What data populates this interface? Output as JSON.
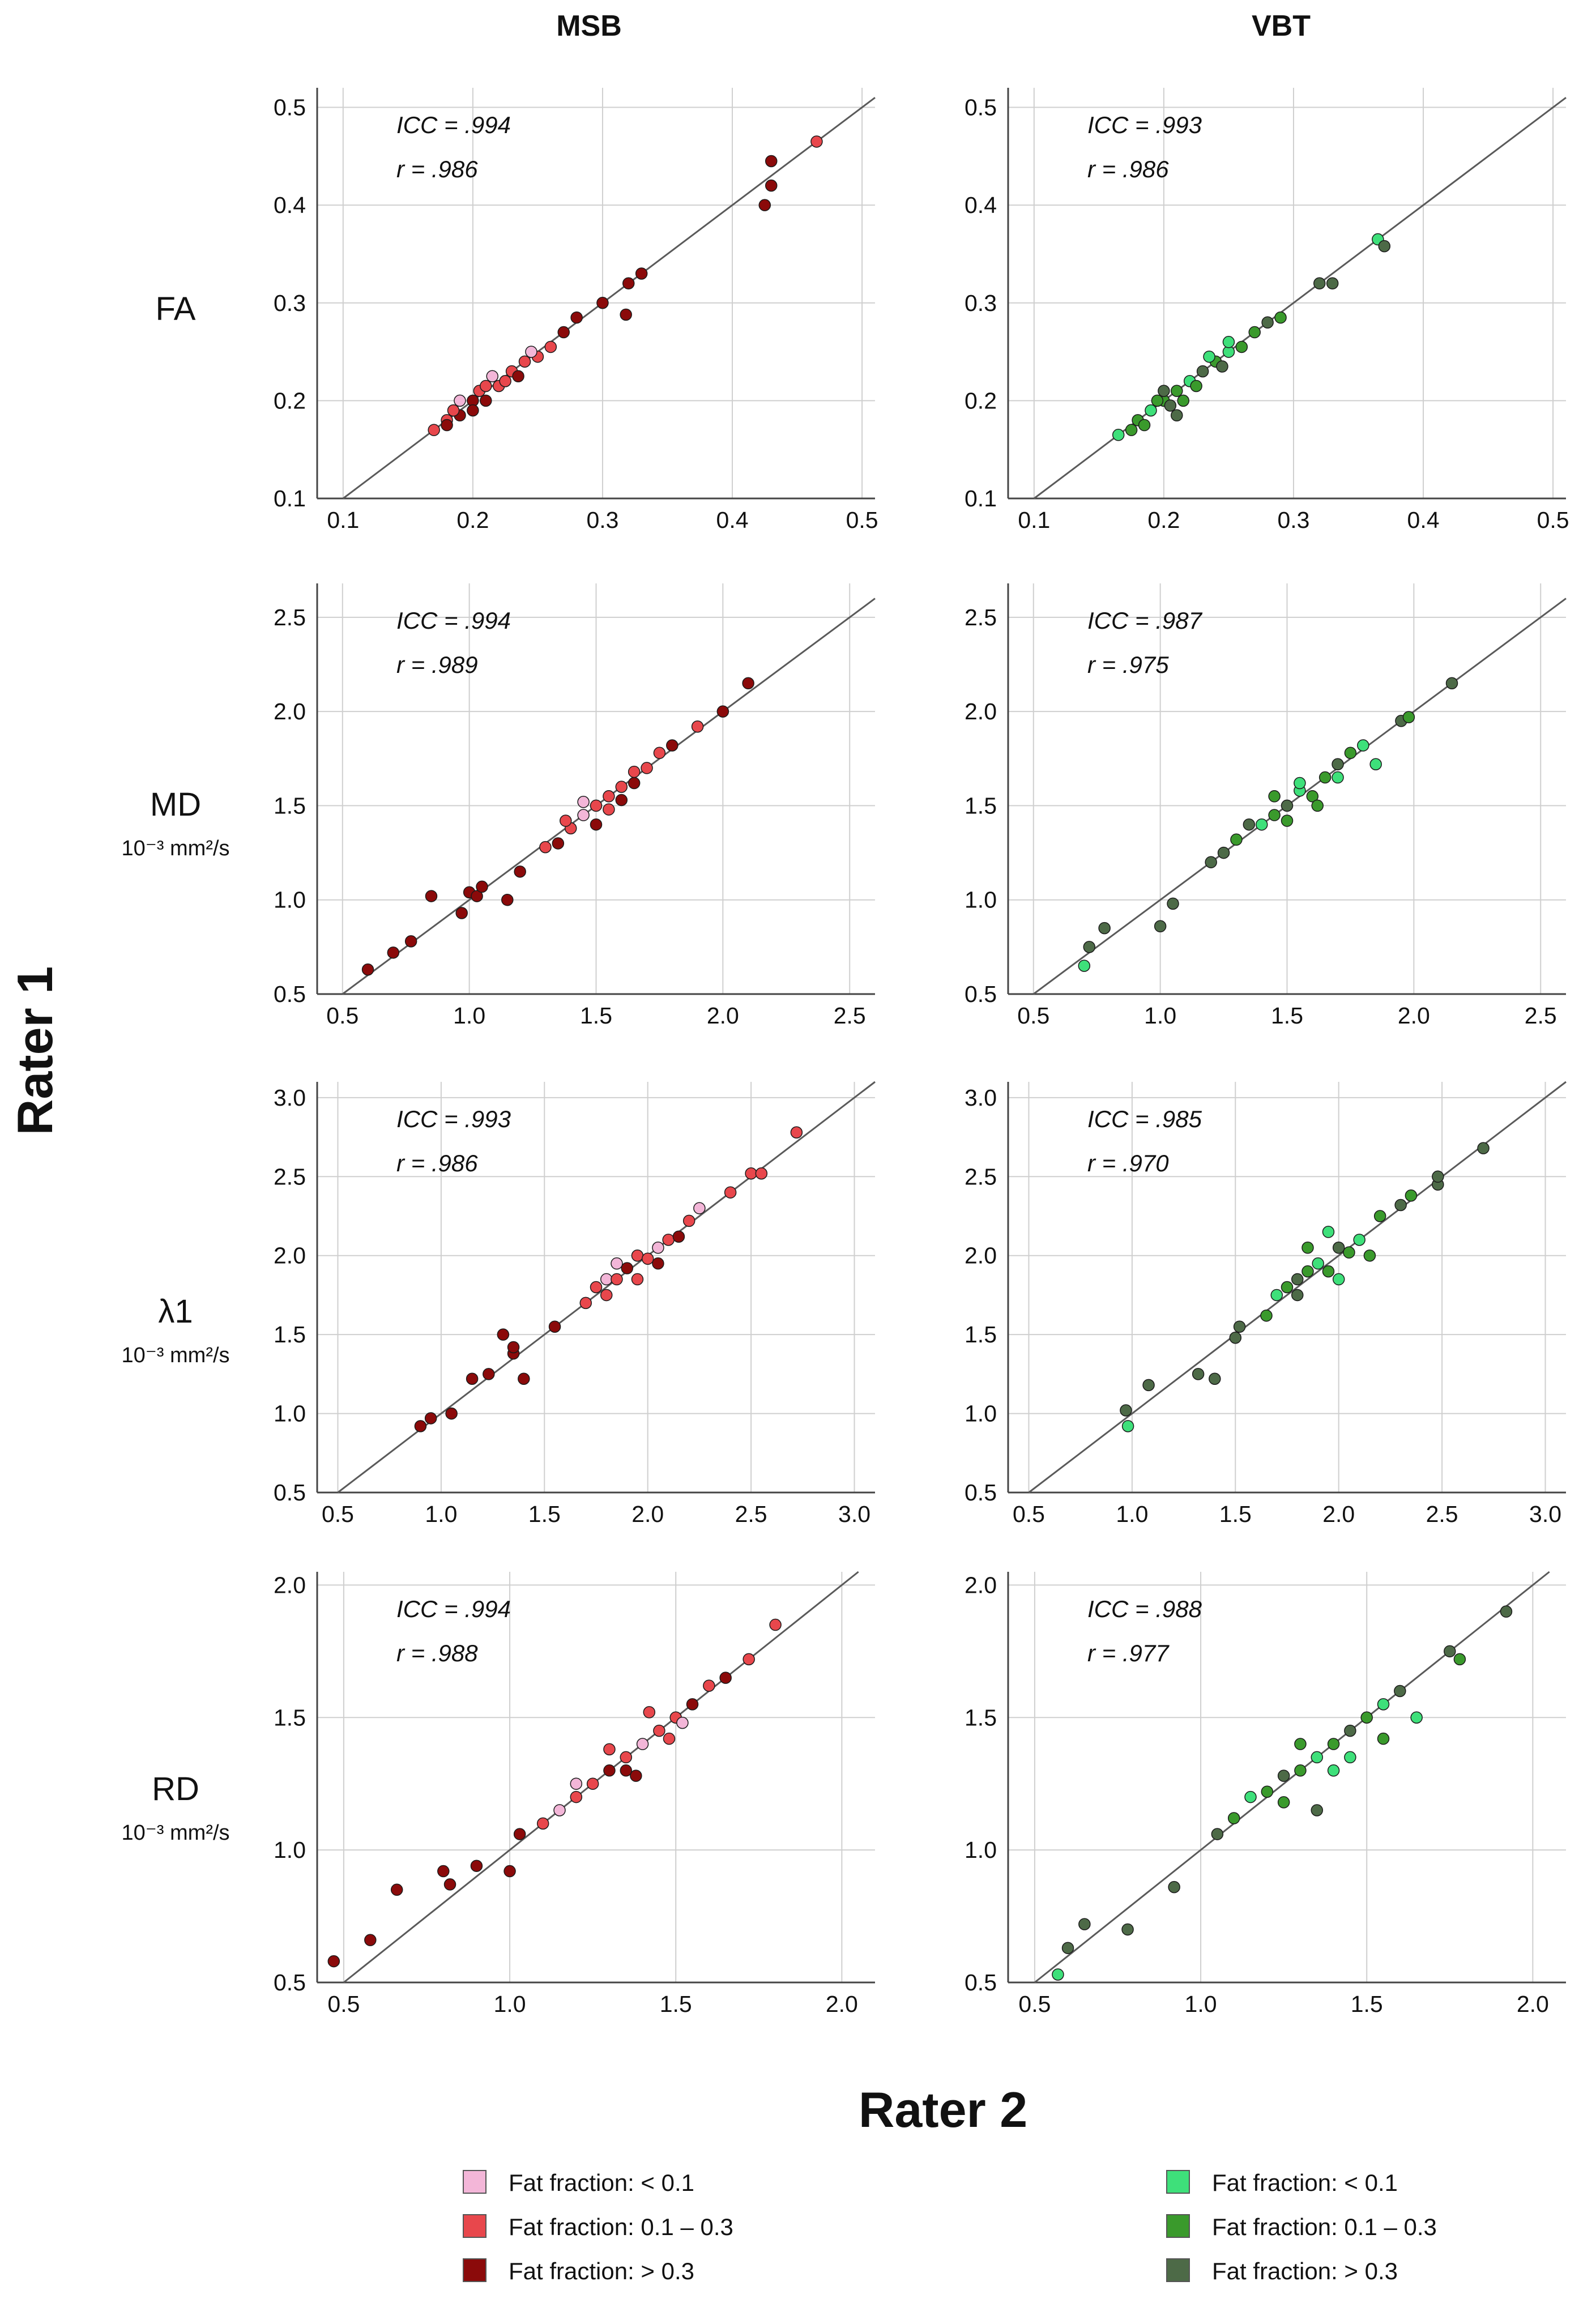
{
  "figure": {
    "column_titles": [
      "MSB",
      "VBT"
    ],
    "y_axis_title": "Rater 1",
    "x_axis_title": "Rater 2",
    "rows": [
      {
        "metric": "FA",
        "unit": ""
      },
      {
        "metric": "MD",
        "unit": "10⁻³ mm²/s"
      },
      {
        "metric": "λ1",
        "unit": "10⁻³ mm²/s"
      },
      {
        "metric": "RD",
        "unit": "10⁻³ mm²/s"
      }
    ]
  },
  "legend": {
    "msb": [
      {
        "label": "Fat fraction: < 0.1",
        "color": "#f3b6d8"
      },
      {
        "label": "Fat fraction: 0.1 – 0.3",
        "color": "#e8474c"
      },
      {
        "label": "Fat fraction: > 0.3",
        "color": "#8b0a0a"
      }
    ],
    "vbt": [
      {
        "label": "Fat fraction: < 0.1",
        "color": "#3ee07a"
      },
      {
        "label": "Fat fraction: 0.1 – 0.3",
        "color": "#3a9a2c"
      },
      {
        "label": "Fat fraction: > 0.3",
        "color": "#4d6a47"
      }
    ]
  },
  "chart_data": [
    {
      "type": "scatter",
      "panel": "MSB FA",
      "color_group": "msb",
      "stats": {
        "icc": "ICC = .994",
        "r": "r = .986"
      },
      "xlim": [
        0.08,
        0.51
      ],
      "ylim": [
        0.1,
        0.52
      ],
      "xticks": [
        "0.1",
        "0.2",
        "0.3",
        "0.4",
        "0.5"
      ],
      "yticks": [
        "0.1",
        "0.2",
        "0.3",
        "0.4",
        "0.5"
      ],
      "identity_line": true,
      "points": [
        [
          0.17,
          0.17
        ],
        [
          0.18,
          0.18
        ],
        [
          0.19,
          0.185
        ],
        [
          0.2,
          0.2
        ],
        [
          0.205,
          0.21
        ],
        [
          0.21,
          0.2
        ],
        [
          0.22,
          0.215
        ],
        [
          0.215,
          0.225
        ],
        [
          0.23,
          0.23
        ],
        [
          0.235,
          0.225
        ],
        [
          0.24,
          0.24
        ],
        [
          0.25,
          0.245
        ],
        [
          0.19,
          0.2
        ],
        [
          0.2,
          0.19
        ],
        [
          0.225,
          0.22
        ],
        [
          0.26,
          0.255
        ],
        [
          0.28,
          0.285
        ],
        [
          0.3,
          0.3
        ],
        [
          0.32,
          0.32
        ],
        [
          0.33,
          0.33
        ],
        [
          0.318,
          0.288
        ],
        [
          0.425,
          0.4
        ],
        [
          0.43,
          0.42
        ],
        [
          0.43,
          0.445
        ],
        [
          0.465,
          0.465
        ],
        [
          0.18,
          0.175
        ],
        [
          0.21,
          0.215
        ],
        [
          0.245,
          0.25
        ],
        [
          0.27,
          0.27
        ],
        [
          0.185,
          0.19
        ]
      ],
      "point_classes": [
        1,
        1,
        2,
        2,
        1,
        2,
        1,
        0,
        1,
        2,
        1,
        1,
        0,
        2,
        1,
        1,
        2,
        2,
        2,
        2,
        2,
        2,
        2,
        2,
        1,
        2,
        1,
        0,
        2,
        1
      ]
    },
    {
      "type": "scatter",
      "panel": "VBT FA",
      "color_group": "vbt",
      "stats": {
        "icc": "ICC = .993",
        "r": "r = .986"
      },
      "xlim": [
        0.08,
        0.51
      ],
      "ylim": [
        0.1,
        0.52
      ],
      "xticks": [
        "0.1",
        "0.2",
        "0.3",
        "0.4",
        "0.5"
      ],
      "yticks": [
        "0.1",
        "0.2",
        "0.3",
        "0.4",
        "0.5"
      ],
      "identity_line": true,
      "points": [
        [
          0.165,
          0.165
        ],
        [
          0.175,
          0.17
        ],
        [
          0.18,
          0.18
        ],
        [
          0.19,
          0.19
        ],
        [
          0.2,
          0.2
        ],
        [
          0.205,
          0.195
        ],
        [
          0.21,
          0.21
        ],
        [
          0.22,
          0.22
        ],
        [
          0.225,
          0.215
        ],
        [
          0.23,
          0.23
        ],
        [
          0.24,
          0.24
        ],
        [
          0.25,
          0.25
        ],
        [
          0.26,
          0.255
        ],
        [
          0.2,
          0.21
        ],
        [
          0.215,
          0.2
        ],
        [
          0.235,
          0.245
        ],
        [
          0.245,
          0.235
        ],
        [
          0.27,
          0.27
        ],
        [
          0.28,
          0.28
        ],
        [
          0.29,
          0.285
        ],
        [
          0.32,
          0.32
        ],
        [
          0.33,
          0.32
        ],
        [
          0.365,
          0.365
        ],
        [
          0.37,
          0.358
        ],
        [
          0.185,
          0.175
        ],
        [
          0.21,
          0.185
        ],
        [
          0.25,
          0.26
        ],
        [
          0.195,
          0.2
        ]
      ],
      "point_classes": [
        0,
        1,
        1,
        0,
        1,
        2,
        1,
        0,
        1,
        2,
        1,
        0,
        1,
        2,
        1,
        0,
        2,
        1,
        2,
        1,
        2,
        2,
        0,
        2,
        1,
        2,
        0,
        1
      ]
    },
    {
      "type": "scatter",
      "panel": "MSB MD",
      "color_group": "msb",
      "stats": {
        "icc": "ICC = .994",
        "r": "r = .989"
      },
      "xlim": [
        0.4,
        2.6
      ],
      "ylim": [
        0.5,
        2.68
      ],
      "xticks": [
        "0.5",
        "1.0",
        "1.5",
        "2.0",
        "2.5"
      ],
      "yticks": [
        "0.5",
        "1.0",
        "1.5",
        "2.0",
        "2.5"
      ],
      "identity_line": true,
      "points": [
        [
          0.6,
          0.63
        ],
        [
          0.7,
          0.72
        ],
        [
          0.77,
          0.78
        ],
        [
          0.85,
          1.02
        ],
        [
          0.97,
          0.93
        ],
        [
          1.0,
          1.04
        ],
        [
          1.03,
          1.02
        ],
        [
          1.05,
          1.07
        ],
        [
          1.15,
          1.0
        ],
        [
          1.2,
          1.15
        ],
        [
          1.3,
          1.28
        ],
        [
          1.35,
          1.3
        ],
        [
          1.4,
          1.38
        ],
        [
          1.45,
          1.45
        ],
        [
          1.5,
          1.5
        ],
        [
          1.5,
          1.4
        ],
        [
          1.55,
          1.55
        ],
        [
          1.6,
          1.6
        ],
        [
          1.65,
          1.62
        ],
        [
          1.7,
          1.7
        ],
        [
          1.75,
          1.78
        ],
        [
          1.8,
          1.82
        ],
        [
          1.45,
          1.52
        ],
        [
          1.55,
          1.48
        ],
        [
          1.6,
          1.53
        ],
        [
          1.65,
          1.68
        ],
        [
          1.38,
          1.42
        ],
        [
          1.9,
          1.92
        ],
        [
          2.0,
          2.0
        ],
        [
          2.1,
          2.15
        ]
      ],
      "point_classes": [
        2,
        2,
        2,
        2,
        2,
        2,
        2,
        2,
        2,
        2,
        1,
        2,
        1,
        0,
        1,
        2,
        1,
        1,
        2,
        1,
        1,
        2,
        0,
        1,
        2,
        1,
        1,
        1,
        2,
        2
      ]
    },
    {
      "type": "scatter",
      "panel": "VBT MD",
      "color_group": "vbt",
      "stats": {
        "icc": "ICC = .987",
        "r": "r = .975"
      },
      "xlim": [
        0.4,
        2.6
      ],
      "ylim": [
        0.5,
        2.68
      ],
      "xticks": [
        "0.5",
        "1.0",
        "1.5",
        "2.0",
        "2.5"
      ],
      "yticks": [
        "0.5",
        "1.0",
        "1.5",
        "2.0",
        "2.5"
      ],
      "identity_line": true,
      "points": [
        [
          0.7,
          0.65
        ],
        [
          0.72,
          0.75
        ],
        [
          0.78,
          0.85
        ],
        [
          1.0,
          0.86
        ],
        [
          1.05,
          0.98
        ],
        [
          1.2,
          1.2
        ],
        [
          1.3,
          1.32
        ],
        [
          1.4,
          1.4
        ],
        [
          1.45,
          1.45
        ],
        [
          1.5,
          1.5
        ],
        [
          1.55,
          1.58
        ],
        [
          1.6,
          1.55
        ],
        [
          1.65,
          1.65
        ],
        [
          1.7,
          1.72
        ],
        [
          1.75,
          1.78
        ],
        [
          1.8,
          1.82
        ],
        [
          1.5,
          1.42
        ],
        [
          1.55,
          1.62
        ],
        [
          1.35,
          1.4
        ],
        [
          1.62,
          1.5
        ],
        [
          1.85,
          1.72
        ],
        [
          1.25,
          1.25
        ],
        [
          1.95,
          1.95
        ],
        [
          1.98,
          1.97
        ],
        [
          2.15,
          2.15
        ],
        [
          1.45,
          1.55
        ],
        [
          1.7,
          1.65
        ]
      ],
      "point_classes": [
        0,
        2,
        2,
        2,
        2,
        2,
        1,
        0,
        1,
        2,
        0,
        1,
        1,
        2,
        1,
        0,
        1,
        0,
        2,
        1,
        0,
        2,
        2,
        1,
        2,
        1,
        0
      ]
    },
    {
      "type": "scatter",
      "panel": "MSB λ1",
      "color_group": "msb",
      "stats": {
        "icc": "ICC = .993",
        "r": "r = .986"
      },
      "xlim": [
        0.4,
        3.1
      ],
      "ylim": [
        0.5,
        3.1
      ],
      "xticks": [
        "0.5",
        "1.0",
        "1.5",
        "2.0",
        "2.5",
        "3.0"
      ],
      "yticks": [
        "0.5",
        "1.0",
        "1.5",
        "2.0",
        "2.5",
        "3.0"
      ],
      "identity_line": true,
      "points": [
        [
          0.9,
          0.92
        ],
        [
          0.95,
          0.97
        ],
        [
          1.05,
          1.0
        ],
        [
          1.15,
          1.22
        ],
        [
          1.23,
          1.25
        ],
        [
          1.3,
          1.5
        ],
        [
          1.35,
          1.38
        ],
        [
          1.4,
          1.22
        ],
        [
          1.35,
          1.42
        ],
        [
          1.55,
          1.55
        ],
        [
          1.7,
          1.7
        ],
        [
          1.75,
          1.8
        ],
        [
          1.8,
          1.85
        ],
        [
          1.85,
          1.85
        ],
        [
          1.9,
          1.92
        ],
        [
          1.95,
          2.0
        ],
        [
          2.0,
          1.98
        ],
        [
          2.05,
          2.05
        ],
        [
          2.1,
          2.1
        ],
        [
          2.15,
          2.12
        ],
        [
          2.2,
          2.22
        ],
        [
          1.85,
          1.95
        ],
        [
          1.95,
          1.85
        ],
        [
          2.05,
          1.95
        ],
        [
          2.4,
          2.4
        ],
        [
          2.5,
          2.52
        ],
        [
          2.55,
          2.52
        ],
        [
          2.72,
          2.78
        ],
        [
          1.8,
          1.75
        ],
        [
          2.25,
          2.3
        ]
      ],
      "point_classes": [
        2,
        2,
        2,
        2,
        2,
        2,
        2,
        2,
        2,
        2,
        1,
        1,
        0,
        1,
        2,
        1,
        1,
        0,
        1,
        2,
        1,
        0,
        1,
        2,
        1,
        1,
        1,
        1,
        1,
        0
      ]
    },
    {
      "type": "scatter",
      "panel": "VBT λ1",
      "color_group": "vbt",
      "stats": {
        "icc": "ICC = .985",
        "r": "r = .970"
      },
      "xlim": [
        0.4,
        3.1
      ],
      "ylim": [
        0.5,
        3.1
      ],
      "xticks": [
        "0.5",
        "1.0",
        "1.5",
        "2.0",
        "2.5",
        "3.0"
      ],
      "yticks": [
        "0.5",
        "1.0",
        "1.5",
        "2.0",
        "2.5",
        "3.0"
      ],
      "identity_line": true,
      "points": [
        [
          0.97,
          1.02
        ],
        [
          0.98,
          0.92
        ],
        [
          1.08,
          1.18
        ],
        [
          1.32,
          1.25
        ],
        [
          1.4,
          1.22
        ],
        [
          1.5,
          1.48
        ],
        [
          1.52,
          1.55
        ],
        [
          1.65,
          1.62
        ],
        [
          1.7,
          1.75
        ],
        [
          1.75,
          1.8
        ],
        [
          1.8,
          1.85
        ],
        [
          1.85,
          1.9
        ],
        [
          1.9,
          1.95
        ],
        [
          1.95,
          1.9
        ],
        [
          2.0,
          2.05
        ],
        [
          2.05,
          2.02
        ],
        [
          2.1,
          2.1
        ],
        [
          2.2,
          2.25
        ],
        [
          2.3,
          2.32
        ],
        [
          2.35,
          2.38
        ],
        [
          2.48,
          2.45
        ],
        [
          2.48,
          2.5
        ],
        [
          2.7,
          2.68
        ],
        [
          1.85,
          2.05
        ],
        [
          2.0,
          1.85
        ],
        [
          2.15,
          2.0
        ],
        [
          1.95,
          2.15
        ],
        [
          1.8,
          1.75
        ]
      ],
      "point_classes": [
        2,
        0,
        2,
        2,
        2,
        2,
        2,
        1,
        0,
        1,
        2,
        1,
        0,
        1,
        2,
        1,
        0,
        1,
        2,
        1,
        2,
        2,
        2,
        1,
        0,
        1,
        0,
        2
      ]
    },
    {
      "type": "scatter",
      "panel": "MSB RD",
      "color_group": "msb",
      "stats": {
        "icc": "ICC = .994",
        "r": "r = .988"
      },
      "xlim": [
        0.42,
        2.1
      ],
      "ylim": [
        0.5,
        2.05
      ],
      "xticks": [
        "0.5",
        "1.0",
        "1.5",
        "2.0"
      ],
      "yticks": [
        "0.5",
        "1.0",
        "1.5",
        "2.0"
      ],
      "identity_line": true,
      "points": [
        [
          0.47,
          0.58
        ],
        [
          0.58,
          0.66
        ],
        [
          0.66,
          0.85
        ],
        [
          0.8,
          0.92
        ],
        [
          0.82,
          0.87
        ],
        [
          0.9,
          0.94
        ],
        [
          1.0,
          0.92
        ],
        [
          1.03,
          1.06
        ],
        [
          1.1,
          1.1
        ],
        [
          1.15,
          1.15
        ],
        [
          1.2,
          1.2
        ],
        [
          1.25,
          1.25
        ],
        [
          1.3,
          1.3
        ],
        [
          1.35,
          1.35
        ],
        [
          1.4,
          1.4
        ],
        [
          1.45,
          1.45
        ],
        [
          1.5,
          1.5
        ],
        [
          1.55,
          1.55
        ],
        [
          1.3,
          1.38
        ],
        [
          1.38,
          1.28
        ],
        [
          1.42,
          1.52
        ],
        [
          1.48,
          1.42
        ],
        [
          1.2,
          1.25
        ],
        [
          1.6,
          1.62
        ],
        [
          1.65,
          1.65
        ],
        [
          1.72,
          1.72
        ],
        [
          1.8,
          1.85
        ],
        [
          1.35,
          1.3
        ],
        [
          1.52,
          1.48
        ]
      ],
      "point_classes": [
        2,
        2,
        2,
        2,
        2,
        2,
        2,
        2,
        1,
        0,
        1,
        1,
        2,
        1,
        0,
        1,
        1,
        2,
        1,
        2,
        1,
        1,
        0,
        1,
        2,
        1,
        1,
        2,
        0
      ]
    },
    {
      "type": "scatter",
      "panel": "VBT RD",
      "color_group": "vbt",
      "stats": {
        "icc": "ICC = .988",
        "r": "r = .977"
      },
      "xlim": [
        0.42,
        2.1
      ],
      "ylim": [
        0.5,
        2.05
      ],
      "xticks": [
        "0.5",
        "1.0",
        "1.5",
        "2.0"
      ],
      "yticks": [
        "0.5",
        "1.0",
        "1.5",
        "2.0"
      ],
      "identity_line": true,
      "points": [
        [
          0.57,
          0.53
        ],
        [
          0.6,
          0.63
        ],
        [
          0.65,
          0.72
        ],
        [
          0.78,
          0.7
        ],
        [
          0.92,
          0.86
        ],
        [
          1.05,
          1.06
        ],
        [
          1.1,
          1.12
        ],
        [
          1.15,
          1.2
        ],
        [
          1.2,
          1.22
        ],
        [
          1.25,
          1.28
        ],
        [
          1.3,
          1.3
        ],
        [
          1.35,
          1.35
        ],
        [
          1.4,
          1.4
        ],
        [
          1.45,
          1.45
        ],
        [
          1.5,
          1.5
        ],
        [
          1.55,
          1.55
        ],
        [
          1.6,
          1.6
        ],
        [
          1.3,
          1.4
        ],
        [
          1.45,
          1.35
        ],
        [
          1.35,
          1.15
        ],
        [
          1.55,
          1.42
        ],
        [
          1.65,
          1.5
        ],
        [
          1.75,
          1.75
        ],
        [
          1.78,
          1.72
        ],
        [
          1.92,
          1.9
        ],
        [
          1.4,
          1.3
        ],
        [
          1.25,
          1.18
        ]
      ],
      "point_classes": [
        0,
        2,
        2,
        2,
        2,
        2,
        1,
        0,
        1,
        2,
        1,
        0,
        1,
        2,
        1,
        0,
        2,
        1,
        0,
        2,
        1,
        0,
        2,
        1,
        2,
        0,
        1
      ]
    }
  ]
}
